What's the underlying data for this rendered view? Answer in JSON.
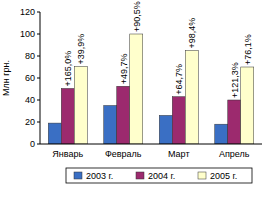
{
  "chart_data": {
    "type": "bar",
    "y_label": "Млн грн.",
    "categories": [
      "Январь",
      "Февраль",
      "Март",
      "Апрель"
    ],
    "series": [
      {
        "name": "2003 г.",
        "color": "#3a6fc4",
        "values": [
          19,
          35,
          26,
          18
        ]
      },
      {
        "name": "2004 г.",
        "color": "#9c2a6e",
        "values": [
          50.5,
          52.5,
          43,
          40
        ],
        "annotations": [
          "+165,0%",
          "+49,7%",
          "+64,7%",
          "+121,3%"
        ]
      },
      {
        "name": "2005 г.",
        "color": "#ffffcc",
        "values": [
          70.5,
          100,
          85,
          70
        ],
        "annotations": [
          "+39,9%",
          "+90,5%",
          "+98,4%",
          "+76,1%"
        ]
      }
    ],
    "ylim": [
      0,
      120
    ],
    "yticks": [
      0,
      20,
      40,
      60,
      80,
      100,
      120
    ],
    "grid": false,
    "legend": "bottom"
  }
}
